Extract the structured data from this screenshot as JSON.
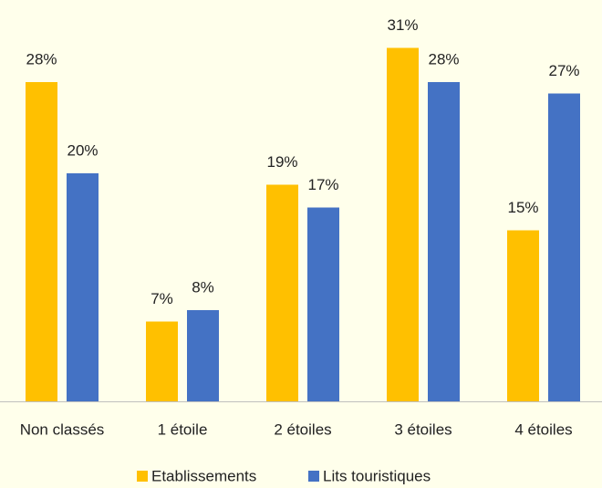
{
  "chart_data": {
    "type": "bar",
    "categories": [
      "Non classés",
      "1 étoile",
      "2 étoiles",
      "3 étoiles",
      "4 étoiles"
    ],
    "series": [
      {
        "name": "Etablissements",
        "color": "#FFC000",
        "values": [
          28,
          7,
          19,
          31,
          15
        ],
        "value_labels": [
          "28%",
          "7%",
          "19%",
          "31%",
          "15%"
        ]
      },
      {
        "name": "Lits touristiques",
        "color": "#4472C4",
        "values": [
          20,
          8,
          17,
          28,
          27
        ],
        "value_labels": [
          "20%",
          "8%",
          "17%",
          "28%",
          "27%"
        ]
      }
    ]
  }
}
